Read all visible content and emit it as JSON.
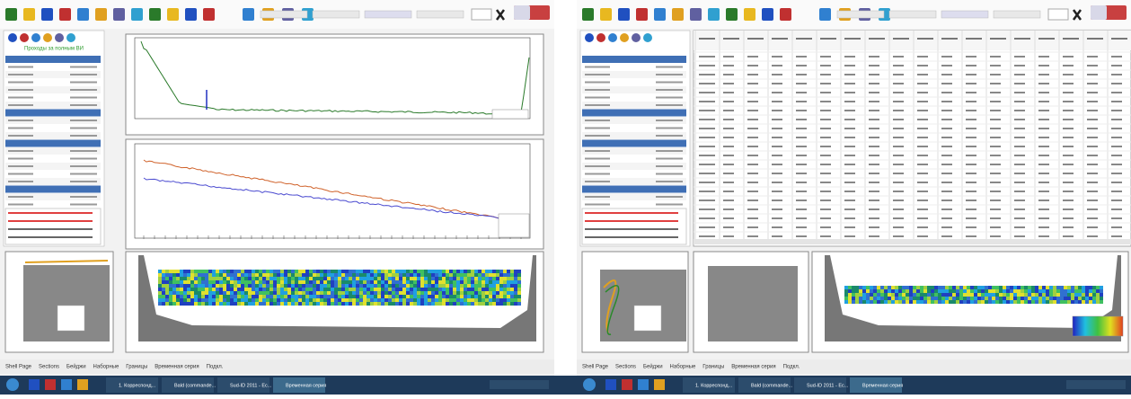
{
  "windows": [
    {
      "status": "Проходы за полным ВИ",
      "tabs": [
        "Shell Page",
        "Sections",
        "Бейджи",
        "Наборные",
        "Границы",
        "Временная серия",
        "Подкл."
      ]
    },
    {
      "tabs": [
        "Shell Page",
        "Sections",
        "Бейджи",
        "Наборные",
        "Границы",
        "Временная серия",
        "Подкл."
      ]
    }
  ],
  "taskbar": {
    "items": [
      "1. Корреспонд...",
      "Bald (commande...",
      "Sud-ID 2011 - Ec...",
      "Временная серия"
    ]
  }
}
